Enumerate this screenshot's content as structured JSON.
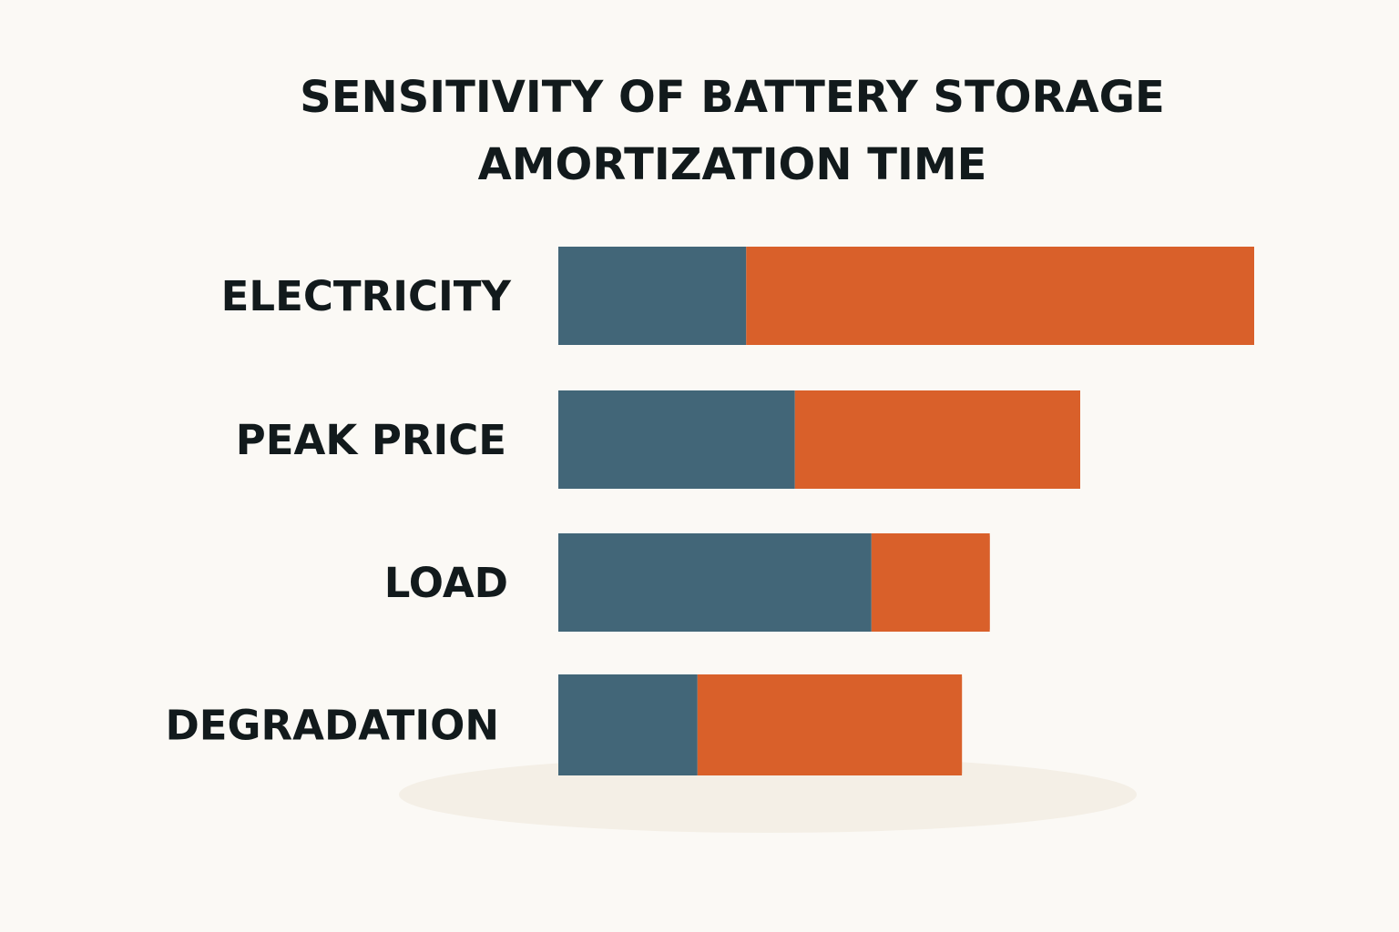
{
  "chart_data": {
    "type": "bar",
    "orientation": "horizontal",
    "stacked": true,
    "title": "SENSITIVITY OF BATTERY STORAGE AMORTIZATION TIME",
    "title_lines": [
      "SENSITIVITY OF BATTERY STORAGE",
      "AMORTIZATION TIME"
    ],
    "categories": [
      "ELECTRICITY",
      "PEAK PRICE",
      "LOAD",
      "DEGRADATION"
    ],
    "series": [
      {
        "color": "#426678",
        "values": [
          27,
          34,
          45,
          20
        ]
      },
      {
        "color": "#d9602a",
        "values": [
          73,
          41,
          17,
          38
        ]
      }
    ],
    "xlim": [
      0,
      100
    ],
    "grid": false,
    "legend": "none",
    "xlabel": "",
    "ylabel": ""
  }
}
